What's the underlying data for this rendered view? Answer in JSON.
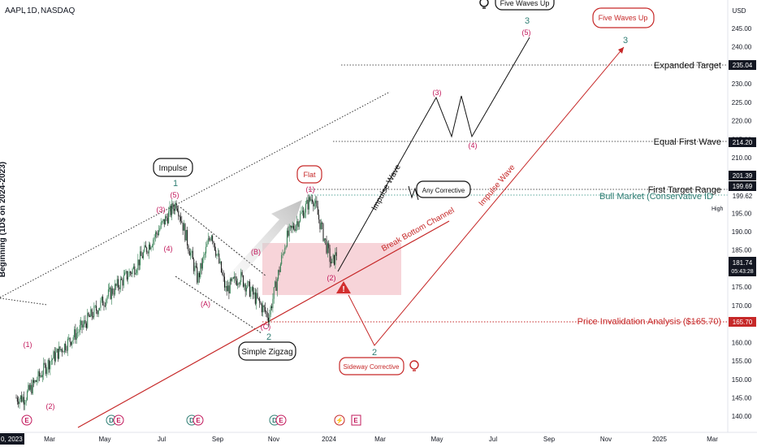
{
  "header": {
    "symbol": "AAPL",
    "interval": "1D",
    "exchange": "NASDAQ"
  },
  "price_axis": {
    "currency": "USD",
    "ticks": [
      "245.00",
      "240.00",
      "230.00",
      "225.00",
      "220.00",
      "215.00",
      "210.00",
      "205.00",
      "195.00",
      "190.00",
      "185.00",
      "180.00",
      "175.00",
      "170.00",
      "160.00",
      "155.00",
      "150.00",
      "145.00",
      "140.00"
    ],
    "tags": {
      "expanded": "235.04",
      "equal": "214.20",
      "top": "201.39",
      "first": "199.69",
      "bull": "199.62",
      "last": "181.74",
      "countdown": "05:43:28",
      "invalidation": "165.70",
      "high": "High"
    }
  },
  "time_axis": {
    "first_partial": "0, 2023",
    "labels": [
      "Mar",
      "May",
      "Jul",
      "Sep",
      "Nov",
      "2024",
      "Mar",
      "May",
      "Jul",
      "Sep",
      "Nov",
      "2025",
      "Mar"
    ]
  },
  "levels": {
    "expanded_target": "Expanded Target",
    "equal_first_wave": "Equal First Wave",
    "first_target_range": "First Target Range",
    "bull_market": "Bull Market (Conservative ID",
    "price_invalidation": "Price Invalidation Analysis ($165.70)"
  },
  "callouts": {
    "impulse": "Impulse",
    "flat": "Flat",
    "any_corrective": "Any Corrective",
    "simple_zigzag": "Simple Zigzag",
    "sideway_corrective": "Sideway Corrective",
    "five_waves_up_red": "Five Waves Up",
    "five_waves_up_black": "Five Waves Up"
  },
  "wave_labels": {
    "w1": "(1)",
    "w2": "(2)",
    "w3": "(3)",
    "w4": "(4)",
    "w5": "(5)",
    "big1": "1",
    "big2": "2",
    "a": "(A)",
    "b": "(B)",
    "c": "(C)",
    "flat1": "(1)",
    "flat2": "(2)",
    "proj3": "(3)",
    "proj4": "(4)",
    "proj5": "(5)",
    "proj_big3": "3",
    "red2": "2",
    "red3": "3"
  },
  "line_labels": {
    "impulse_wave_black": "Impulse Wave",
    "impulse_wave_red": "Impulse Wave",
    "break_bottom_channel": "Break Bottom Channel"
  },
  "sidebar_text": "Beginning (1D$ on 2024-2023)",
  "colors": {
    "wave_label": "#c2185b",
    "red_line": "#c62828",
    "teal": "#2e7d73",
    "zone": "#f5c9d0",
    "dark": "#131722"
  },
  "chart_data": {
    "type": "line",
    "title": "",
    "xlabel": "",
    "ylabel": "",
    "price_range": [
      137,
      248
    ],
    "x": [
      "2023-02-01",
      "2023-03-01",
      "2023-04-01",
      "2023-05-01",
      "2023-06-01",
      "2023-07-18",
      "2023-08-10",
      "2023-08-25",
      "2023-09-10",
      "2023-09-25",
      "2023-10-27",
      "2023-11-15",
      "2023-12-14",
      "2024-01-04",
      "2024-01-10"
    ],
    "series": [
      {
        "values": [
          145,
          155,
          163,
          172,
          180,
          198,
          177,
          190,
          174,
          178,
          167,
          188,
          199.6,
          181,
          184.5
        ]
      }
    ],
    "annotations": [
      {
        "label": "Expanded Target",
        "value": 235.04
      },
      {
        "label": "Equal First Wave",
        "value": 214.2
      },
      {
        "label": "First Target Range",
        "value": 199.69
      },
      {
        "label": "Price Invalidation Analysis ($165.70)",
        "value": 165.7
      }
    ]
  }
}
